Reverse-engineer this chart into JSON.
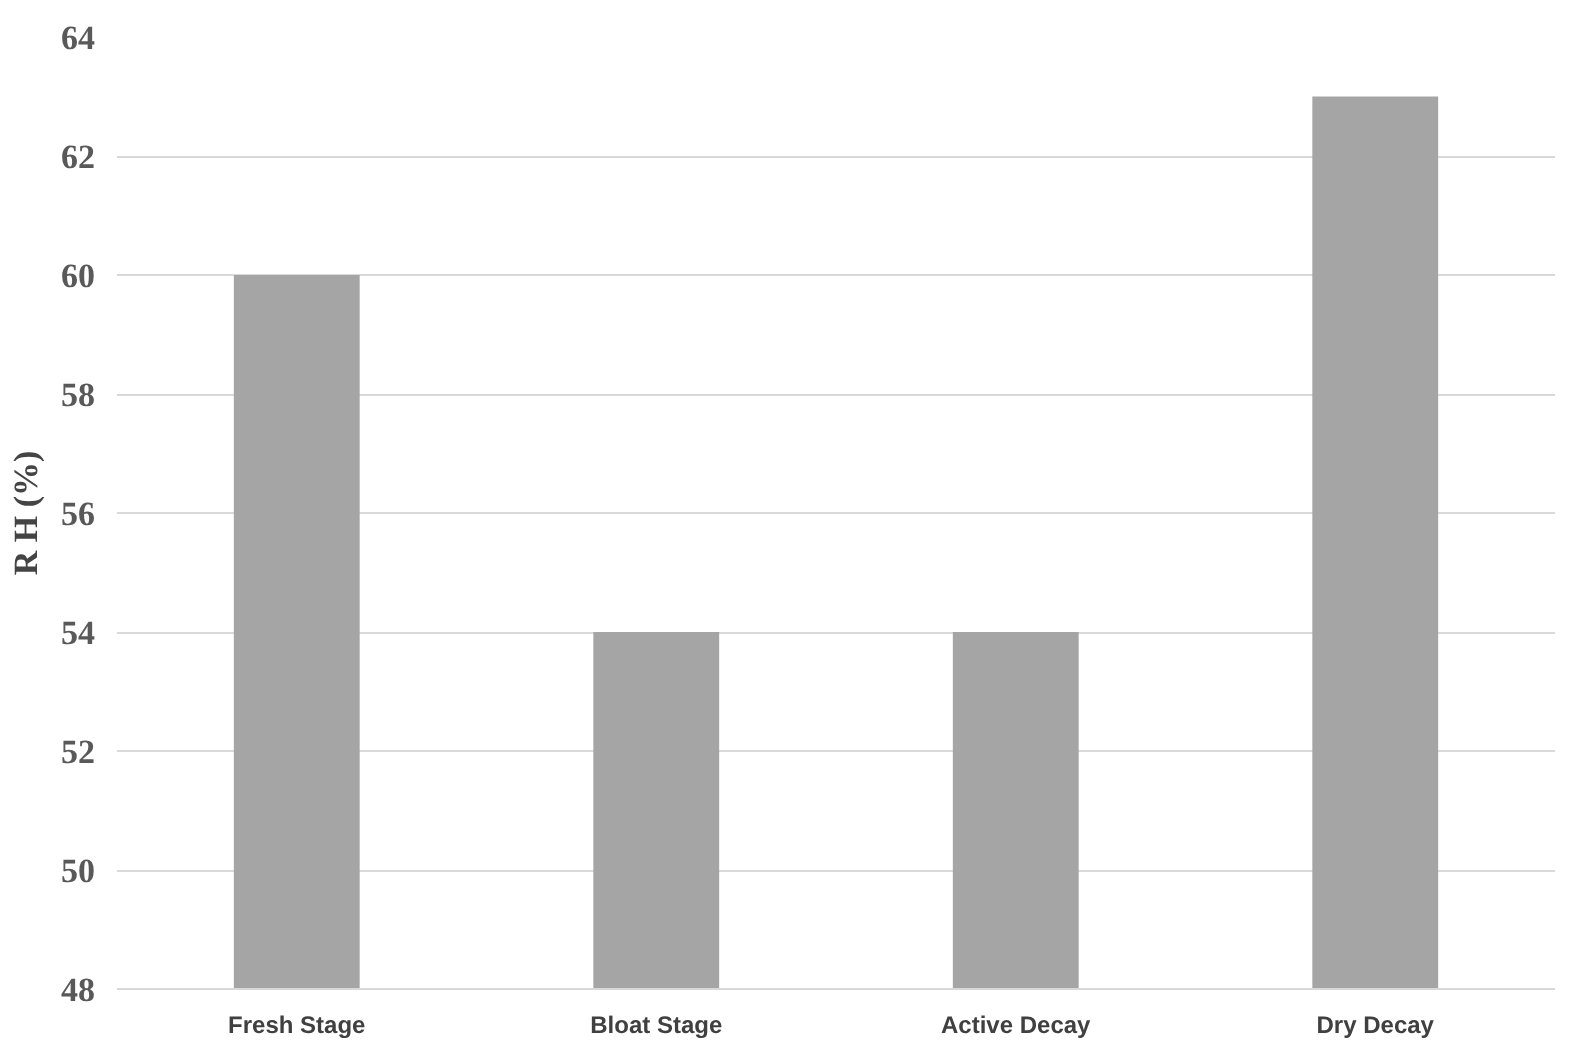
{
  "chart_data": {
    "type": "bar",
    "ylabel": "R H (%)",
    "categories": [
      "Fresh Stage",
      "Bloat Stage",
      "Active Decay",
      "Dry Decay"
    ],
    "values": [
      60,
      54,
      54,
      63
    ],
    "color": "#a5a5a5",
    "ylim": [
      48,
      64
    ],
    "yticks": [
      48,
      50,
      52,
      54,
      56,
      58,
      60,
      62,
      64
    ],
    "grid": "y"
  }
}
